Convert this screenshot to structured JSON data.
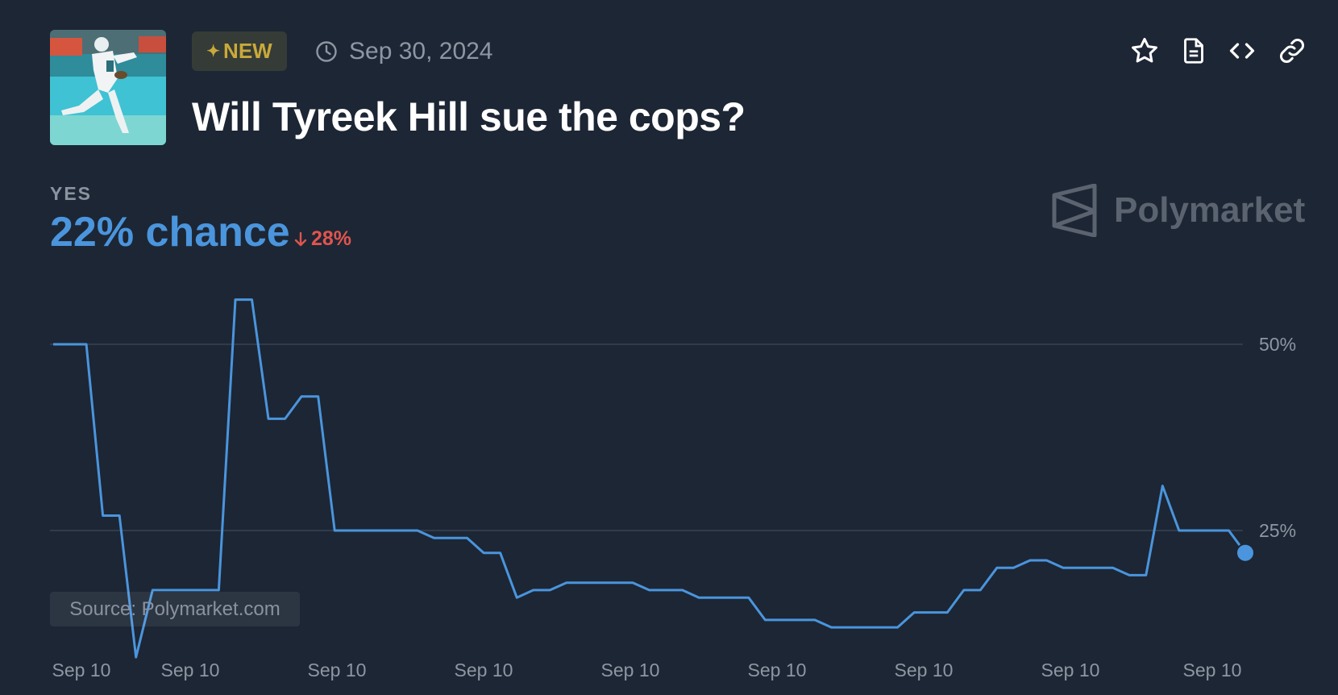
{
  "header": {
    "badge_icon": "sparkle-icon",
    "badge_label": "NEW",
    "date_icon": "clock-icon",
    "date": "Sep 30, 2024",
    "title": "Will Tyreek Hill sue the cops?"
  },
  "actions": [
    {
      "name": "favorite-button",
      "icon": "star-icon"
    },
    {
      "name": "document-button",
      "icon": "document-icon"
    },
    {
      "name": "embed-button",
      "icon": "code-icon"
    },
    {
      "name": "link-button",
      "icon": "link-icon"
    }
  ],
  "summary": {
    "outcome_label": "YES",
    "chance_text": "22% chance",
    "delta_text": "28%",
    "delta_direction": "down"
  },
  "brand": {
    "name": "Polymarket",
    "icon": "polymarket-logo-icon"
  },
  "source_text": "Source: Polymarket.com",
  "colors": {
    "background": "#1d2634",
    "line": "#4a95dd",
    "new_badge": "#c8a93b",
    "delta_down": "#e0544f"
  },
  "chart_data": {
    "type": "line",
    "series": [
      {
        "values": [
          50,
          50,
          50,
          27,
          27,
          8,
          17,
          17,
          17,
          17,
          17,
          56,
          56,
          40,
          40,
          43,
          43,
          25,
          25,
          25,
          25,
          25,
          25,
          24,
          24,
          24,
          22,
          22,
          16,
          17,
          17,
          18,
          18,
          18,
          18,
          18,
          17,
          17,
          17,
          16,
          16,
          16,
          16,
          13,
          13,
          13,
          13,
          12,
          12,
          12,
          12,
          12,
          14,
          14,
          14,
          17,
          17,
          20,
          20,
          21,
          21,
          20,
          20,
          20,
          20,
          19,
          19,
          31,
          25,
          25,
          25,
          25,
          22
        ]
      }
    ],
    "x_tick_labels": [
      "Sep 10",
      "Sep 10",
      "Sep 10",
      "Sep 10",
      "Sep 10",
      "Sep 10",
      "Sep 10",
      "Sep 10",
      "Sep 10"
    ],
    "y_ticks": [
      {
        "value": 50,
        "label": "50%"
      },
      {
        "value": 25,
        "label": "25%"
      }
    ],
    "ylim": [
      0,
      60
    ],
    "last_value": 22,
    "grid": "horizontal"
  }
}
